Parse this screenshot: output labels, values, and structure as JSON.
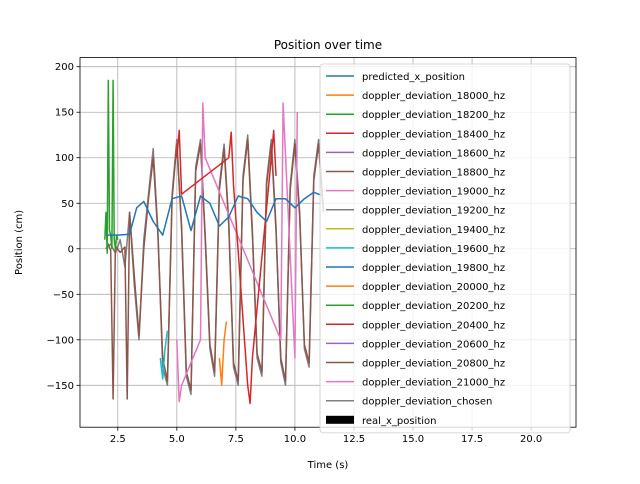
{
  "chart_data": {
    "type": "line",
    "title": "Position over time",
    "xlabel": "Time (s)",
    "ylabel": "Position (cm)",
    "xlim": [
      0.9,
      21.9
    ],
    "ylim": [
      -196,
      210
    ],
    "xticks": [
      2.5,
      5.0,
      7.5,
      10.0,
      12.5,
      15.0,
      17.5,
      20.0
    ],
    "xtick_labels": [
      "2.5",
      "5.0",
      "7.5",
      "10.0",
      "12.5",
      "15.0",
      "17.5",
      "20.0"
    ],
    "yticks": [
      -150,
      -100,
      -50,
      0,
      50,
      100,
      150,
      200
    ],
    "ytick_labels": [
      "−150",
      "−100",
      "−50",
      "0",
      "50",
      "100",
      "150",
      "200"
    ],
    "grid": true,
    "legend_position": "upper-right",
    "series": [
      {
        "name": "predicted_x_position",
        "color": "#1f77b4",
        "kind": "line"
      },
      {
        "name": "doppler_deviation_18000_hz",
        "color": "#ff7f0e",
        "kind": "line"
      },
      {
        "name": "doppler_deviation_18200_hz",
        "color": "#2ca02c",
        "kind": "line"
      },
      {
        "name": "doppler_deviation_18400_hz",
        "color": "#d62728",
        "kind": "line"
      },
      {
        "name": "doppler_deviation_18600_hz",
        "color": "#9467bd",
        "kind": "line"
      },
      {
        "name": "doppler_deviation_18800_hz",
        "color": "#8c564b",
        "kind": "line"
      },
      {
        "name": "doppler_deviation_19000_hz",
        "color": "#e377c2",
        "kind": "line"
      },
      {
        "name": "doppler_deviation_19200_hz",
        "color": "#7f7f7f",
        "kind": "line"
      },
      {
        "name": "doppler_deviation_19400_hz",
        "color": "#bcbd22",
        "kind": "line"
      },
      {
        "name": "doppler_deviation_19600_hz",
        "color": "#17becf",
        "kind": "line"
      },
      {
        "name": "doppler_deviation_19800_hz",
        "color": "#1f77b4",
        "kind": "line"
      },
      {
        "name": "doppler_deviation_20000_hz",
        "color": "#ff7f0e",
        "kind": "line"
      },
      {
        "name": "doppler_deviation_20200_hz",
        "color": "#2ca02c",
        "kind": "line"
      },
      {
        "name": "doppler_deviation_20400_hz",
        "color": "#d62728",
        "kind": "line"
      },
      {
        "name": "doppler_deviation_20600_hz",
        "color": "#9467bd",
        "kind": "line"
      },
      {
        "name": "doppler_deviation_20800_hz",
        "color": "#8c564b",
        "kind": "line"
      },
      {
        "name": "doppler_deviation_21000_hz",
        "color": "#e377c2",
        "kind": "line"
      },
      {
        "name": "doppler_deviation_chosen",
        "color": "#7f7f7f",
        "kind": "line"
      },
      {
        "name": "real_x_position",
        "color": "#000000",
        "kind": "bar"
      }
    ],
    "predicted_x_position": {
      "x": [
        2.0,
        2.5,
        3.0,
        3.3,
        3.6,
        4.0,
        4.4,
        4.8,
        5.2,
        5.6,
        6.0,
        6.4,
        6.8,
        7.2,
        7.6,
        8.0,
        8.4,
        8.8,
        9.2,
        9.6,
        10.0,
        10.4,
        10.8,
        11.2
      ],
      "y": [
        15,
        15,
        16,
        45,
        52,
        30,
        15,
        55,
        58,
        20,
        58,
        50,
        25,
        35,
        58,
        55,
        40,
        30,
        55,
        55,
        45,
        55,
        62,
        58
      ]
    },
    "dense_traces": [
      {
        "series": "doppler_deviation_chosen",
        "x": [
          2.0,
          2.2,
          2.4,
          2.6,
          2.8,
          3.0,
          3.2,
          3.4,
          3.6,
          3.8,
          4.0,
          4.2,
          4.4,
          4.6,
          4.8,
          5.0,
          5.2,
          5.4,
          5.6,
          5.8,
          6.0,
          6.2,
          6.4,
          6.6,
          6.8,
          7.0,
          7.2,
          7.4,
          7.6,
          7.8,
          8.0,
          8.2,
          8.4,
          8.6,
          8.8,
          9.0,
          9.2,
          9.4,
          9.6,
          9.8,
          10.0,
          10.2,
          10.4,
          10.6,
          10.8,
          11.0,
          11.2
        ],
        "y": [
          0,
          5,
          -5,
          10,
          -20,
          40,
          -40,
          -100,
          10,
          60,
          110,
          20,
          -130,
          -150,
          60,
          120,
          20,
          -140,
          -160,
          90,
          120,
          10,
          -110,
          -140,
          70,
          115,
          30,
          -130,
          -150,
          80,
          125,
          20,
          -120,
          -140,
          75,
          120,
          25,
          -125,
          -150,
          70,
          120,
          40,
          -110,
          -130,
          80,
          120,
          45
        ]
      },
      {
        "series": "doppler_deviation_20800_hz",
        "x": [
          2.0,
          2.1,
          2.2,
          2.3,
          2.4,
          2.6,
          2.8,
          2.9,
          3.0,
          3.2,
          3.4,
          3.6,
          3.8,
          4.0,
          4.2,
          4.4,
          4.6,
          4.8,
          5.0,
          5.2,
          5.4,
          5.6,
          5.8,
          6.0,
          6.2,
          6.4,
          6.6,
          6.8,
          7.0,
          7.2,
          7.4,
          7.6,
          7.8,
          8.0,
          8.2,
          8.4,
          8.6,
          8.8,
          9.0,
          9.2,
          9.4,
          9.6,
          9.8,
          10.0,
          10.2,
          10.4,
          10.6,
          10.8,
          11.0,
          11.2
        ],
        "y": [
          0,
          5,
          -2,
          -165,
          3,
          -4,
          2,
          -165,
          40,
          -30,
          -95,
          0,
          55,
          100,
          15,
          -120,
          -145,
          55,
          115,
          25,
          -135,
          -155,
          85,
          115,
          15,
          -105,
          -135,
          65,
          110,
          25,
          -125,
          -145,
          75,
          120,
          15,
          -115,
          -135,
          70,
          115,
          20,
          -120,
          -145,
          65,
          115,
          35,
          -105,
          -125,
          75,
          115,
          40
        ]
      },
      {
        "series": "doppler_deviation_18200_hz",
        "x": [
          1.95,
          2.0,
          2.05,
          2.1,
          2.15,
          2.2,
          2.25,
          2.3,
          2.35,
          2.4,
          2.45,
          2.5
        ],
        "y": [
          10,
          40,
          -5,
          185,
          20,
          15,
          0,
          185,
          10,
          0,
          15,
          10
        ]
      },
      {
        "series": "doppler_deviation_19000_hz",
        "x": [
          5.0,
          5.1,
          5.2,
          6.0,
          6.1,
          6.2,
          9.4,
          9.5,
          10.0,
          10.1
        ],
        "y": [
          -100,
          -168,
          -150,
          -100,
          160,
          100,
          -100,
          160,
          -120,
          150
        ]
      },
      {
        "series": "doppler_deviation_18400_hz",
        "x": [
          5.0,
          5.1,
          5.2,
          7.2,
          7.3,
          7.4,
          8.0,
          8.1,
          8.2,
          9.0,
          9.1,
          9.2
        ],
        "y": [
          100,
          130,
          60,
          100,
          128,
          70,
          -150,
          -170,
          -120,
          100,
          130,
          80
        ]
      },
      {
        "series": "doppler_deviation_19600_hz",
        "x": [
          4.3,
          4.4,
          4.5,
          4.6
        ],
        "y": [
          -120,
          -143,
          -110,
          -90
        ]
      },
      {
        "series": "doppler_deviation_18000_hz",
        "x": [
          6.8,
          6.9,
          7.0,
          7.1
        ],
        "y": [
          -120,
          -150,
          -100,
          -80
        ]
      }
    ]
  }
}
